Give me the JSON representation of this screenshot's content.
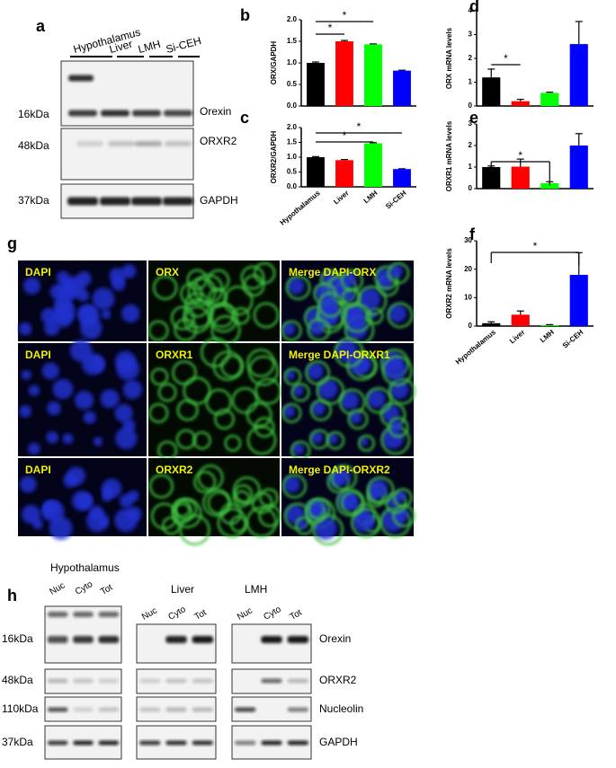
{
  "panel_a": {
    "label": "a",
    "lanes": [
      "Hypothalamus",
      "Liver",
      "LMH",
      "Si-CEH"
    ],
    "markers": [
      "16kDa",
      "48kDa",
      "37kDa"
    ],
    "proteins": [
      "Orexin",
      "ORXR2",
      "GAPDH"
    ]
  },
  "chart_data": [
    {
      "type": "bar",
      "panel_label": "b",
      "ylabel": "ORX/GAPDH",
      "categories": [
        null,
        null,
        null,
        null
      ],
      "values": [
        1.0,
        1.5,
        1.43,
        0.82
      ],
      "errors": [
        0.02,
        0.02,
        0.01,
        0.01
      ],
      "colors": [
        "#000000",
        "#ff0000",
        "#00ff00",
        "#0000ff"
      ],
      "ylim": [
        0,
        2
      ],
      "yticks": [
        {
          "value": 0,
          "label": "0.0"
        },
        {
          "value": 0.5,
          "label": "0.5"
        },
        {
          "value": 1,
          "label": "1.0"
        },
        {
          "value": 1.5,
          "label": "1.5"
        },
        {
          "value": 2,
          "label": "2.0"
        }
      ],
      "significance": [
        {
          "from": 0,
          "to": 1,
          "label": "*"
        },
        {
          "from": 0,
          "to": 2,
          "label": "*"
        }
      ]
    },
    {
      "type": "bar",
      "panel_label": "c",
      "ylabel": "ORXR2/GAPDH",
      "categories": [
        "Hypothalamus",
        "Liver",
        "LMH",
        "Si-CEH"
      ],
      "values": [
        1.0,
        0.9,
        1.47,
        0.6
      ],
      "errors": [
        0.02,
        0.02,
        0.02,
        0.01
      ],
      "colors": [
        "#000000",
        "#ff0000",
        "#00ff00",
        "#0000ff"
      ],
      "ylim": [
        0,
        2
      ],
      "yticks": [
        {
          "value": 0,
          "label": "0.0"
        },
        {
          "value": 0.5,
          "label": "0.5"
        },
        {
          "value": 1,
          "label": "1.0"
        },
        {
          "value": 1.5,
          "label": "1.5"
        },
        {
          "value": 2,
          "label": "2.0"
        }
      ],
      "significance": [
        {
          "from": 0,
          "to": 2,
          "label": "*"
        },
        {
          "from": 0,
          "to": 3,
          "label": "*"
        }
      ]
    },
    {
      "type": "bar",
      "panel_label": "d",
      "ylabel": "ORX mRNA levels",
      "categories": [
        null,
        null,
        null,
        null
      ],
      "values": [
        1.2,
        0.2,
        0.55,
        2.6
      ],
      "errors": [
        0.35,
        0.08,
        0.03,
        0.95
      ],
      "colors": [
        "#000000",
        "#ff0000",
        "#00ff00",
        "#0000ff"
      ],
      "ylim": [
        0,
        4
      ],
      "yticks": [
        0,
        1,
        2,
        3,
        4
      ],
      "significance": [
        {
          "from": 0,
          "to": 1,
          "label": "*"
        }
      ]
    },
    {
      "type": "bar",
      "panel_label": "e",
      "ylabel": "ORXR1 mRNA levels",
      "categories": [
        null,
        null,
        null,
        null
      ],
      "values": [
        1.0,
        1.02,
        0.25,
        2.0
      ],
      "errors": [
        0.05,
        0.35,
        0.07,
        0.55
      ],
      "colors": [
        "#000000",
        "#ff0000",
        "#00ff00",
        "#0000ff"
      ],
      "ylim": [
        0,
        3
      ],
      "yticks": [
        0,
        1,
        2,
        3
      ],
      "significance": [
        {
          "from": 0,
          "to": 2,
          "label": "*"
        }
      ]
    },
    {
      "type": "bar",
      "panel_label": "f",
      "ylabel": "ORXR2 mRNA levels",
      "categories": [
        "Hypothalamus",
        "Liver",
        "LMH",
        "Si-CEH"
      ],
      "values": [
        1.0,
        4.0,
        0.3,
        18
      ],
      "errors": [
        0.5,
        1.3,
        0.2,
        7.8
      ],
      "colors": [
        "#000000",
        "#ff0000",
        "#00ff00",
        "#0000ff"
      ],
      "ylim": [
        0,
        30
      ],
      "yticks": [
        0,
        10,
        20,
        30
      ],
      "significance": [
        {
          "from": 0,
          "to": 3,
          "label": "*"
        }
      ]
    }
  ],
  "panel_g": {
    "label": "g",
    "images": [
      [
        "DAPI",
        "ORX",
        "Merge DAPI-ORX"
      ],
      [
        "DAPI",
        "ORXR1",
        "Merge DAPI-ORXR1"
      ],
      [
        "DAPI",
        "ORXR2",
        "Merge DAPI-ORXR2"
      ]
    ]
  },
  "panel_h": {
    "label": "h",
    "groups": [
      {
        "name": "Hypothalamus",
        "lanes": [
          "Nuc",
          "Cyto",
          "Tot"
        ]
      },
      {
        "name": "Liver",
        "lanes": [
          "Nuc",
          "Cyto",
          "Tot"
        ]
      },
      {
        "name": "LMH",
        "lanes": [
          "Nuc",
          "Cyto",
          "Tot"
        ]
      }
    ],
    "markers": [
      "16kDa",
      "48kDa",
      "110kDa",
      "37kDa"
    ],
    "proteins": [
      "Orexin",
      "ORXR2",
      "Nucleolin",
      "GAPDH"
    ]
  }
}
